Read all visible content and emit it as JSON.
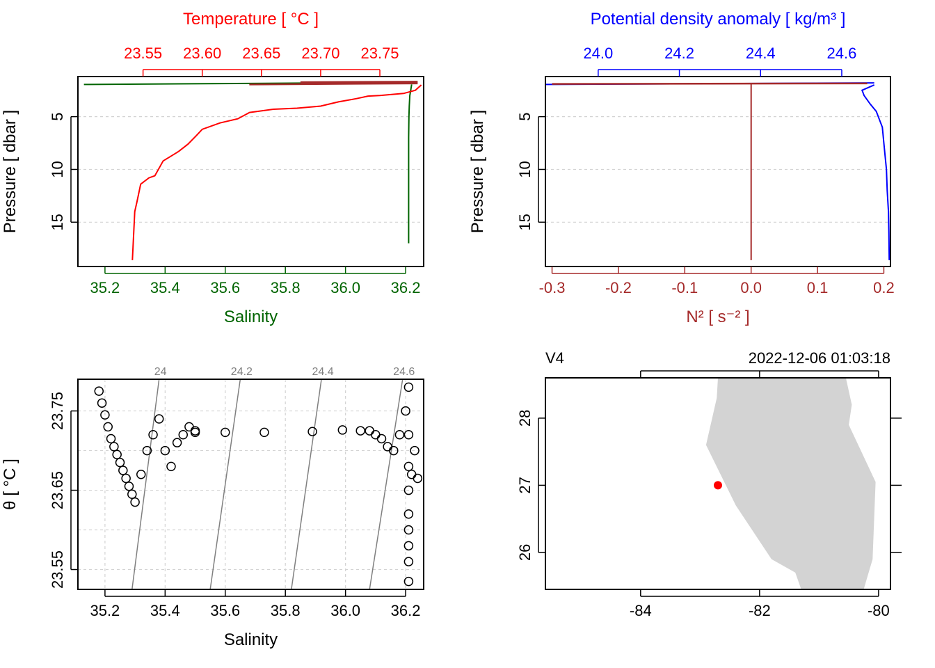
{
  "colors": {
    "salinity": "#006400",
    "temperature": "#ff0000",
    "density": "#0000ff",
    "n2": "#a52a2a",
    "isopycnal": "#808080",
    "land": "#d3d3d3",
    "station": "#ff0000",
    "grid": "#d3d3d3"
  },
  "chart_data": [
    {
      "panel": "profile-salinity-temperature",
      "type": "line",
      "bottom_axis": {
        "label": "Salinity",
        "range": [
          35.11,
          36.26
        ],
        "ticks": [
          35.2,
          35.4,
          35.6,
          35.8,
          36.0,
          36.2
        ],
        "tick_labels": [
          "35.2",
          "35.4",
          "35.6",
          "35.8",
          "36.0",
          "36.2"
        ]
      },
      "top_axis": {
        "label": "Temperature [ °C ]",
        "range": [
          23.495,
          23.787
        ],
        "ticks": [
          23.55,
          23.6,
          23.65,
          23.7,
          23.75
        ],
        "tick_labels": [
          "23.55",
          "23.60",
          "23.65",
          "23.70",
          "23.75"
        ]
      },
      "y_axis": {
        "label": "Pressure [ dbar ]",
        "range": [
          19.2,
          1.2
        ],
        "reversed": true,
        "ticks": [
          5,
          10,
          15
        ],
        "tick_labels": [
          "5",
          "10",
          "15"
        ]
      },
      "grid": true,
      "series": [
        {
          "name": "Salinity",
          "axis": "bottom",
          "x": [
            36.22,
            36.217,
            36.214,
            36.212,
            36.211,
            36.21,
            36.21,
            36.21,
            36.21,
            36.21,
            36.21
          ],
          "y": [
            1.95,
            2.5,
            3.0,
            4.0,
            5.0,
            7.0,
            9.0,
            11.0,
            13.0,
            15.0,
            17.0
          ]
        },
        {
          "name": "Temperature",
          "axis": "top",
          "x": [
            23.785,
            23.78,
            23.77,
            23.75,
            23.74,
            23.73,
            23.715,
            23.7,
            23.68,
            23.66,
            23.64,
            23.63,
            23.615,
            23.6,
            23.595,
            23.588,
            23.58,
            23.567,
            23.56,
            23.555,
            23.548,
            23.545,
            23.543,
            23.541
          ],
          "y": [
            2.0,
            2.5,
            2.8,
            3.0,
            3.05,
            3.3,
            3.6,
            4.0,
            4.2,
            4.3,
            4.6,
            5.2,
            5.6,
            6.2,
            6.8,
            7.6,
            8.3,
            9.2,
            10.6,
            10.8,
            11.4,
            13.0,
            14.0,
            18.6
          ]
        }
      ]
    },
    {
      "panel": "profile-n2-density",
      "type": "line",
      "bottom_axis": {
        "label": "N² [ s⁻² ]",
        "range": [
          -0.31,
          0.21
        ],
        "ticks": [
          -0.3,
          -0.2,
          -0.1,
          0.0,
          0.1,
          0.2
        ],
        "tick_labels": [
          "-0.3",
          "-0.2",
          "-0.1",
          "0.0",
          "0.1",
          "0.2"
        ]
      },
      "top_axis": {
        "label": "Potential density anomaly [ kg/m³ ]",
        "range": [
          23.87,
          24.72
        ],
        "ticks": [
          24.0,
          24.2,
          24.4,
          24.6
        ],
        "tick_labels": [
          "24.0",
          "24.2",
          "24.4",
          "24.6"
        ]
      },
      "y_axis": {
        "label": "Pressure [ dbar ]",
        "range": [
          19.2,
          1.2
        ],
        "reversed": true,
        "ticks": [
          5,
          10,
          15
        ],
        "tick_labels": [
          "5",
          "10",
          "15"
        ]
      },
      "grid": true,
      "series": [
        {
          "name": "Potential density anomaly",
          "axis": "top",
          "x": [
            24.68,
            24.65,
            24.655,
            24.67,
            24.685,
            24.7,
            24.705,
            24.71,
            24.712,
            24.715,
            24.716,
            24.717
          ],
          "y": [
            2.0,
            2.5,
            3.0,
            3.8,
            4.5,
            6.0,
            8.0,
            10.0,
            12.0,
            14.0,
            16.0,
            18.6
          ]
        },
        {
          "name": "N²",
          "axis": "bottom",
          "x": [
            0.0,
            0.0,
            0.0,
            0.0,
            0.0
          ],
          "y": [
            1.9,
            3.0,
            8.0,
            13.0,
            18.6
          ]
        }
      ]
    },
    {
      "panel": "ts-diagram",
      "type": "scatter",
      "x_axis": {
        "label": "Salinity",
        "range": [
          35.11,
          36.26
        ],
        "ticks": [
          35.2,
          35.4,
          35.6,
          35.8,
          36.0,
          36.2
        ],
        "tick_labels": [
          "35.2",
          "35.4",
          "35.6",
          "35.8",
          "36.0",
          "36.2"
        ]
      },
      "y_axis": {
        "label": "θ [ °C ]",
        "range": [
          23.525,
          23.79
        ],
        "ticks": [
          23.55,
          23.65,
          23.75
        ],
        "tick_labels": [
          "23.55",
          "23.65",
          "23.75"
        ]
      },
      "grid": true,
      "isopycnals": [
        {
          "label": "24",
          "s_top": 35.38,
          "s_bottom": 35.29
        },
        {
          "label": "24.2",
          "s_top": 35.65,
          "s_bottom": 35.55
        },
        {
          "label": "24.4",
          "s_top": 35.92,
          "s_bottom": 35.82
        },
        {
          "label": "24.6",
          "s_top": 36.19,
          "s_bottom": 36.08
        }
      ],
      "points": {
        "cluster_fresh": {
          "s": [
            35.18,
            35.19,
            35.2,
            35.21,
            35.22,
            35.23,
            35.24,
            35.25,
            35.26,
            35.27,
            35.28,
            35.29,
            35.3,
            35.32,
            35.34,
            35.36,
            35.38,
            35.4,
            35.42,
            35.44,
            35.46,
            35.48,
            35.5
          ],
          "t": [
            23.775,
            23.76,
            23.745,
            23.73,
            23.715,
            23.705,
            23.695,
            23.685,
            23.675,
            23.665,
            23.655,
            23.645,
            23.635,
            23.67,
            23.7,
            23.72,
            23.74,
            23.7,
            23.68,
            23.71,
            23.72,
            23.73,
            23.725
          ]
        },
        "cluster_salty": {
          "s": [
            36.05,
            36.08,
            36.1,
            36.12,
            36.14,
            36.16,
            36.18,
            36.2,
            36.21,
            36.21,
            36.21,
            36.21,
            36.21,
            36.21,
            36.21,
            36.21,
            36.21,
            36.22,
            36.23,
            36.24
          ],
          "t": [
            23.725,
            23.725,
            23.72,
            23.715,
            23.705,
            23.7,
            23.72,
            23.75,
            23.78,
            23.72,
            23.68,
            23.65,
            23.62,
            23.6,
            23.58,
            23.56,
            23.535,
            23.67,
            23.7,
            23.665
          ]
        },
        "transition": {
          "s": [
            35.5,
            35.6,
            35.73,
            35.89,
            35.99
          ],
          "t": [
            23.723,
            23.723,
            23.723,
            23.724,
            23.726
          ]
        }
      }
    },
    {
      "panel": "station-map",
      "type": "map",
      "station_name": "V4",
      "datetime": "2022-12-06 01:03:18",
      "x_axis": {
        "range": [
          -85.6,
          -79.8
        ],
        "ticks": [
          -84,
          -82,
          -80
        ],
        "tick_labels": [
          "-84",
          "-82",
          "-80"
        ]
      },
      "y_axis": {
        "range": [
          25.45,
          28.6
        ],
        "ticks": [
          26,
          27,
          28
        ],
        "tick_labels": [
          "26",
          "27",
          "28"
        ]
      },
      "grid": false,
      "station": {
        "lon": -82.7,
        "lat": 27.0
      },
      "land_polygon": {
        "lon": [
          -82.7,
          -80.55,
          -80.45,
          -80.5,
          -80.05,
          -80.1,
          -80.25,
          -81.3,
          -81.4,
          -81.8,
          -82.4,
          -82.9,
          -82.72
        ],
        "lat": [
          28.6,
          28.6,
          28.2,
          27.9,
          27.05,
          25.9,
          25.45,
          25.45,
          25.7,
          25.9,
          26.7,
          27.6,
          28.3
        ]
      }
    }
  ]
}
